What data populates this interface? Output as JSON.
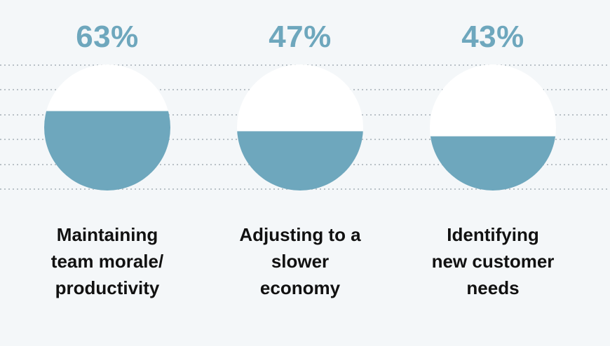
{
  "colors": {
    "background": "#f4f7f9",
    "fill": "#6ea7bd",
    "empty": "#ffffff",
    "percent_text": "#6ea7bd",
    "label_text": "#111111",
    "gridline": "#b9c1c7"
  },
  "chart_data": {
    "type": "pie",
    "style": "fill-level circles",
    "grid": true,
    "items": [
      {
        "value": 63,
        "percent_label": "63%",
        "label_lines": [
          "Maintaining",
          "team morale/",
          "productivity"
        ]
      },
      {
        "value": 47,
        "percent_label": "47%",
        "label_lines": [
          "Adjusting to a",
          "slower",
          "economy"
        ]
      },
      {
        "value": 43,
        "percent_label": "43%",
        "label_lines": [
          "Identifying",
          "new customer",
          "needs"
        ]
      }
    ]
  }
}
